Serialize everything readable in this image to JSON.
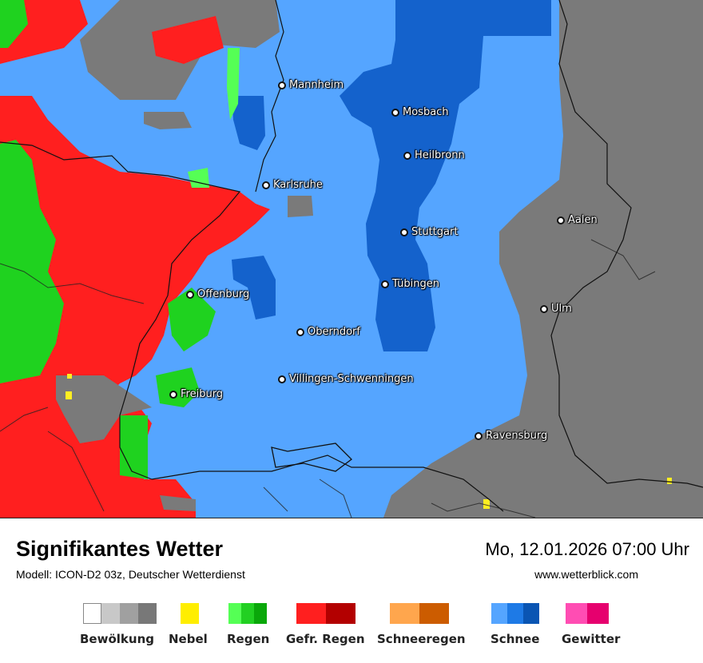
{
  "map": {
    "cities": [
      {
        "name": "Mannheim"
      },
      {
        "name": "Mosbach"
      },
      {
        "name": "Heilbronn"
      },
      {
        "name": "Karlsruhe"
      },
      {
        "name": "Aalen"
      },
      {
        "name": "Stuttgart"
      },
      {
        "name": "Tübingen"
      },
      {
        "name": "Offenburg"
      },
      {
        "name": "Ulm"
      },
      {
        "name": "Oberndorf"
      },
      {
        "name": "Villingen-Schwenningen"
      },
      {
        "name": "Freiburg"
      },
      {
        "name": "Ravensburg"
      }
    ],
    "colors": {
      "snow_light": "#55a5ff",
      "snow_dark": "#1462cc",
      "snow_mid": "#2a7ae6",
      "clouds": "#7a7a7a",
      "rain": "#1fd21f",
      "freezing_rain": "#ff1f1f",
      "fog": "#ffee22"
    }
  },
  "footer": {
    "title": "Signifikantes Wetter",
    "model": "Modell: ICON-D2 03z, Deutscher Wetterdienst",
    "datetime": "Mo, 12.01.2026 07:00 Uhr",
    "url": "www.wetterblick.com"
  },
  "legend": [
    {
      "label": "Bewölkung",
      "colors": [
        "#ffffff",
        "#c8c8c8",
        "#a0a0a0",
        "#787878"
      ]
    },
    {
      "label": "Nebel",
      "colors": [
        "#ffee00"
      ]
    },
    {
      "label": "Regen",
      "colors": [
        "#55ff55",
        "#22d022",
        "#0aa80a"
      ]
    },
    {
      "label": "Gefr. Regen",
      "colors": [
        "#ff1f1f",
        "#b30000"
      ]
    },
    {
      "label": "Schneeregen",
      "colors": [
        "#ffa64d",
        "#cc5c00"
      ]
    },
    {
      "label": "Schnee",
      "colors": [
        "#55a5ff",
        "#1e7ae6",
        "#0a55b3"
      ]
    },
    {
      "label": "Gewitter",
      "colors": [
        "#ff4db3",
        "#e6006e"
      ]
    }
  ]
}
